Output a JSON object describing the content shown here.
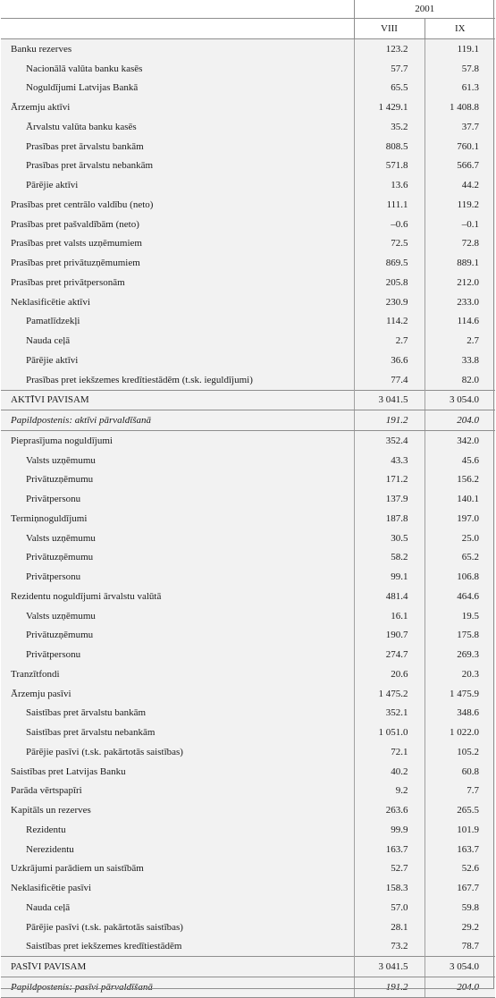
{
  "header": {
    "year": "2001",
    "months": [
      "VIII",
      "IX"
    ]
  },
  "rows": [
    {
      "label": "Banku rezerves",
      "v1": "123.2",
      "v2": "119.1",
      "indent": 0
    },
    {
      "label": "Nacionālā valūta banku kasēs",
      "v1": "57.7",
      "v2": "57.8",
      "indent": 1
    },
    {
      "label": "Noguldījumi Latvijas Bankā",
      "v1": "65.5",
      "v2": "61.3",
      "indent": 1
    },
    {
      "label": "Ārzemju aktīvi",
      "v1": "1 429.1",
      "v2": "1 408.8",
      "indent": 0
    },
    {
      "label": "Ārvalstu valūta banku kasēs",
      "v1": "35.2",
      "v2": "37.7",
      "indent": 1
    },
    {
      "label": "Prasības pret ārvalstu bankām",
      "v1": "808.5",
      "v2": "760.1",
      "indent": 1
    },
    {
      "label": "Prasības pret ārvalstu nebankām",
      "v1": "571.8",
      "v2": "566.7",
      "indent": 1
    },
    {
      "label": "Pārējie aktīvi",
      "v1": "13.6",
      "v2": "44.2",
      "indent": 1
    },
    {
      "label": "Prasības pret centrālo valdību (neto)",
      "v1": "111.1",
      "v2": "119.2",
      "indent": 0
    },
    {
      "label": "Prasības pret pašvaldībām (neto)",
      "v1": "–0.6",
      "v2": "–0.1",
      "indent": 0
    },
    {
      "label": "Prasības pret valsts uzņēmumiem",
      "v1": "72.5",
      "v2": "72.8",
      "indent": 0
    },
    {
      "label": "Prasības pret privātuzņēmumiem",
      "v1": "869.5",
      "v2": "889.1",
      "indent": 0
    },
    {
      "label": "Prasības pret privātpersonām",
      "v1": "205.8",
      "v2": "212.0",
      "indent": 0
    },
    {
      "label": "Neklasificētie aktīvi",
      "v1": "230.9",
      "v2": "233.0",
      "indent": 0
    },
    {
      "label": "Pamatlīdzekļi",
      "v1": "114.2",
      "v2": "114.6",
      "indent": 1
    },
    {
      "label": "Nauda ceļā",
      "v1": "2.7",
      "v2": "2.7",
      "indent": 1
    },
    {
      "label": "Pārējie aktīvi",
      "v1": "36.6",
      "v2": "33.8",
      "indent": 1
    },
    {
      "label": "Prasības pret iekšzemes kredītiestādēm (t.sk. ieguldījumi)",
      "v1": "77.4",
      "v2": "82.0",
      "indent": 1
    },
    {
      "label": "AKTĪVI PAVISAM",
      "v1": "3 041.5",
      "v2": "3 054.0",
      "indent": 0,
      "style": "total"
    },
    {
      "label": "Papildpostenis: aktīvi pārvaldīšanā",
      "v1": "191.2",
      "v2": "204.0",
      "indent": 0,
      "style": "memo"
    },
    {
      "label": "Pieprasījuma noguldījumi",
      "v1": "352.4",
      "v2": "342.0",
      "indent": 0
    },
    {
      "label": "Valsts uzņēmumu",
      "v1": "43.3",
      "v2": "45.6",
      "indent": 1
    },
    {
      "label": "Privātuzņēmumu",
      "v1": "171.2",
      "v2": "156.2",
      "indent": 1
    },
    {
      "label": "Privātpersonu",
      "v1": "137.9",
      "v2": "140.1",
      "indent": 1
    },
    {
      "label": "Termiņnoguldījumi",
      "v1": "187.8",
      "v2": "197.0",
      "indent": 0
    },
    {
      "label": "Valsts uzņēmumu",
      "v1": "30.5",
      "v2": "25.0",
      "indent": 1
    },
    {
      "label": "Privātuzņēmumu",
      "v1": "58.2",
      "v2": "65.2",
      "indent": 1
    },
    {
      "label": "Privātpersonu",
      "v1": "99.1",
      "v2": "106.8",
      "indent": 1
    },
    {
      "label": "Rezidentu noguldījumi ārvalstu valūtā",
      "v1": "481.4",
      "v2": "464.6",
      "indent": 0
    },
    {
      "label": "Valsts uzņēmumu",
      "v1": "16.1",
      "v2": "19.5",
      "indent": 1
    },
    {
      "label": "Privātuzņēmumu",
      "v1": "190.7",
      "v2": "175.8",
      "indent": 1
    },
    {
      "label": "Privātpersonu",
      "v1": "274.7",
      "v2": "269.3",
      "indent": 1
    },
    {
      "label": "Tranzītfondi",
      "v1": "20.6",
      "v2": "20.3",
      "indent": 0
    },
    {
      "label": "Ārzemju pasīvi",
      "v1": "1 475.2",
      "v2": "1 475.9",
      "indent": 0
    },
    {
      "label": "Saistības pret ārvalstu bankām",
      "v1": "352.1",
      "v2": "348.6",
      "indent": 1
    },
    {
      "label": "Saistības pret ārvalstu nebankām",
      "v1": "1 051.0",
      "v2": "1 022.0",
      "indent": 1
    },
    {
      "label": "Pārējie pasīvi (t.sk. pakārtotās saistības)",
      "v1": "72.1",
      "v2": "105.2",
      "indent": 1
    },
    {
      "label": "Saistības pret Latvijas Banku",
      "v1": "40.2",
      "v2": "60.8",
      "indent": 0
    },
    {
      "label": "Parāda vērtspapīri",
      "v1": "9.2",
      "v2": "7.7",
      "indent": 0
    },
    {
      "label": "Kapitāls un rezerves",
      "v1": "263.6",
      "v2": "265.5",
      "indent": 0
    },
    {
      "label": "Rezidentu",
      "v1": "99.9",
      "v2": "101.9",
      "indent": 1
    },
    {
      "label": "Nerezidentu",
      "v1": "163.7",
      "v2": "163.7",
      "indent": 1
    },
    {
      "label": "Uzkrājumi parādiem un saistībām",
      "v1": "52.7",
      "v2": "52.6",
      "indent": 0
    },
    {
      "label": "Neklasificētie pasīvi",
      "v1": "158.3",
      "v2": "167.7",
      "indent": 0
    },
    {
      "label": "Nauda ceļā",
      "v1": "57.0",
      "v2": "59.8",
      "indent": 1
    },
    {
      "label": "Pārējie pasīvi (t.sk. pakārtotās saistības)",
      "v1": "28.1",
      "v2": "29.2",
      "indent": 1
    },
    {
      "label": "Saistības pret iekšzemes kredītiestādēm",
      "v1": "73.2",
      "v2": "78.7",
      "indent": 1
    },
    {
      "label": "PASĪVI PAVISAM",
      "v1": "3 041.5",
      "v2": "3 054.0",
      "indent": 0,
      "style": "total"
    },
    {
      "label": "Papildpostenis: pasīvi pārvaldīšanā",
      "v1": "191.2",
      "v2": "204.0",
      "indent": 0,
      "style": "memo"
    }
  ]
}
